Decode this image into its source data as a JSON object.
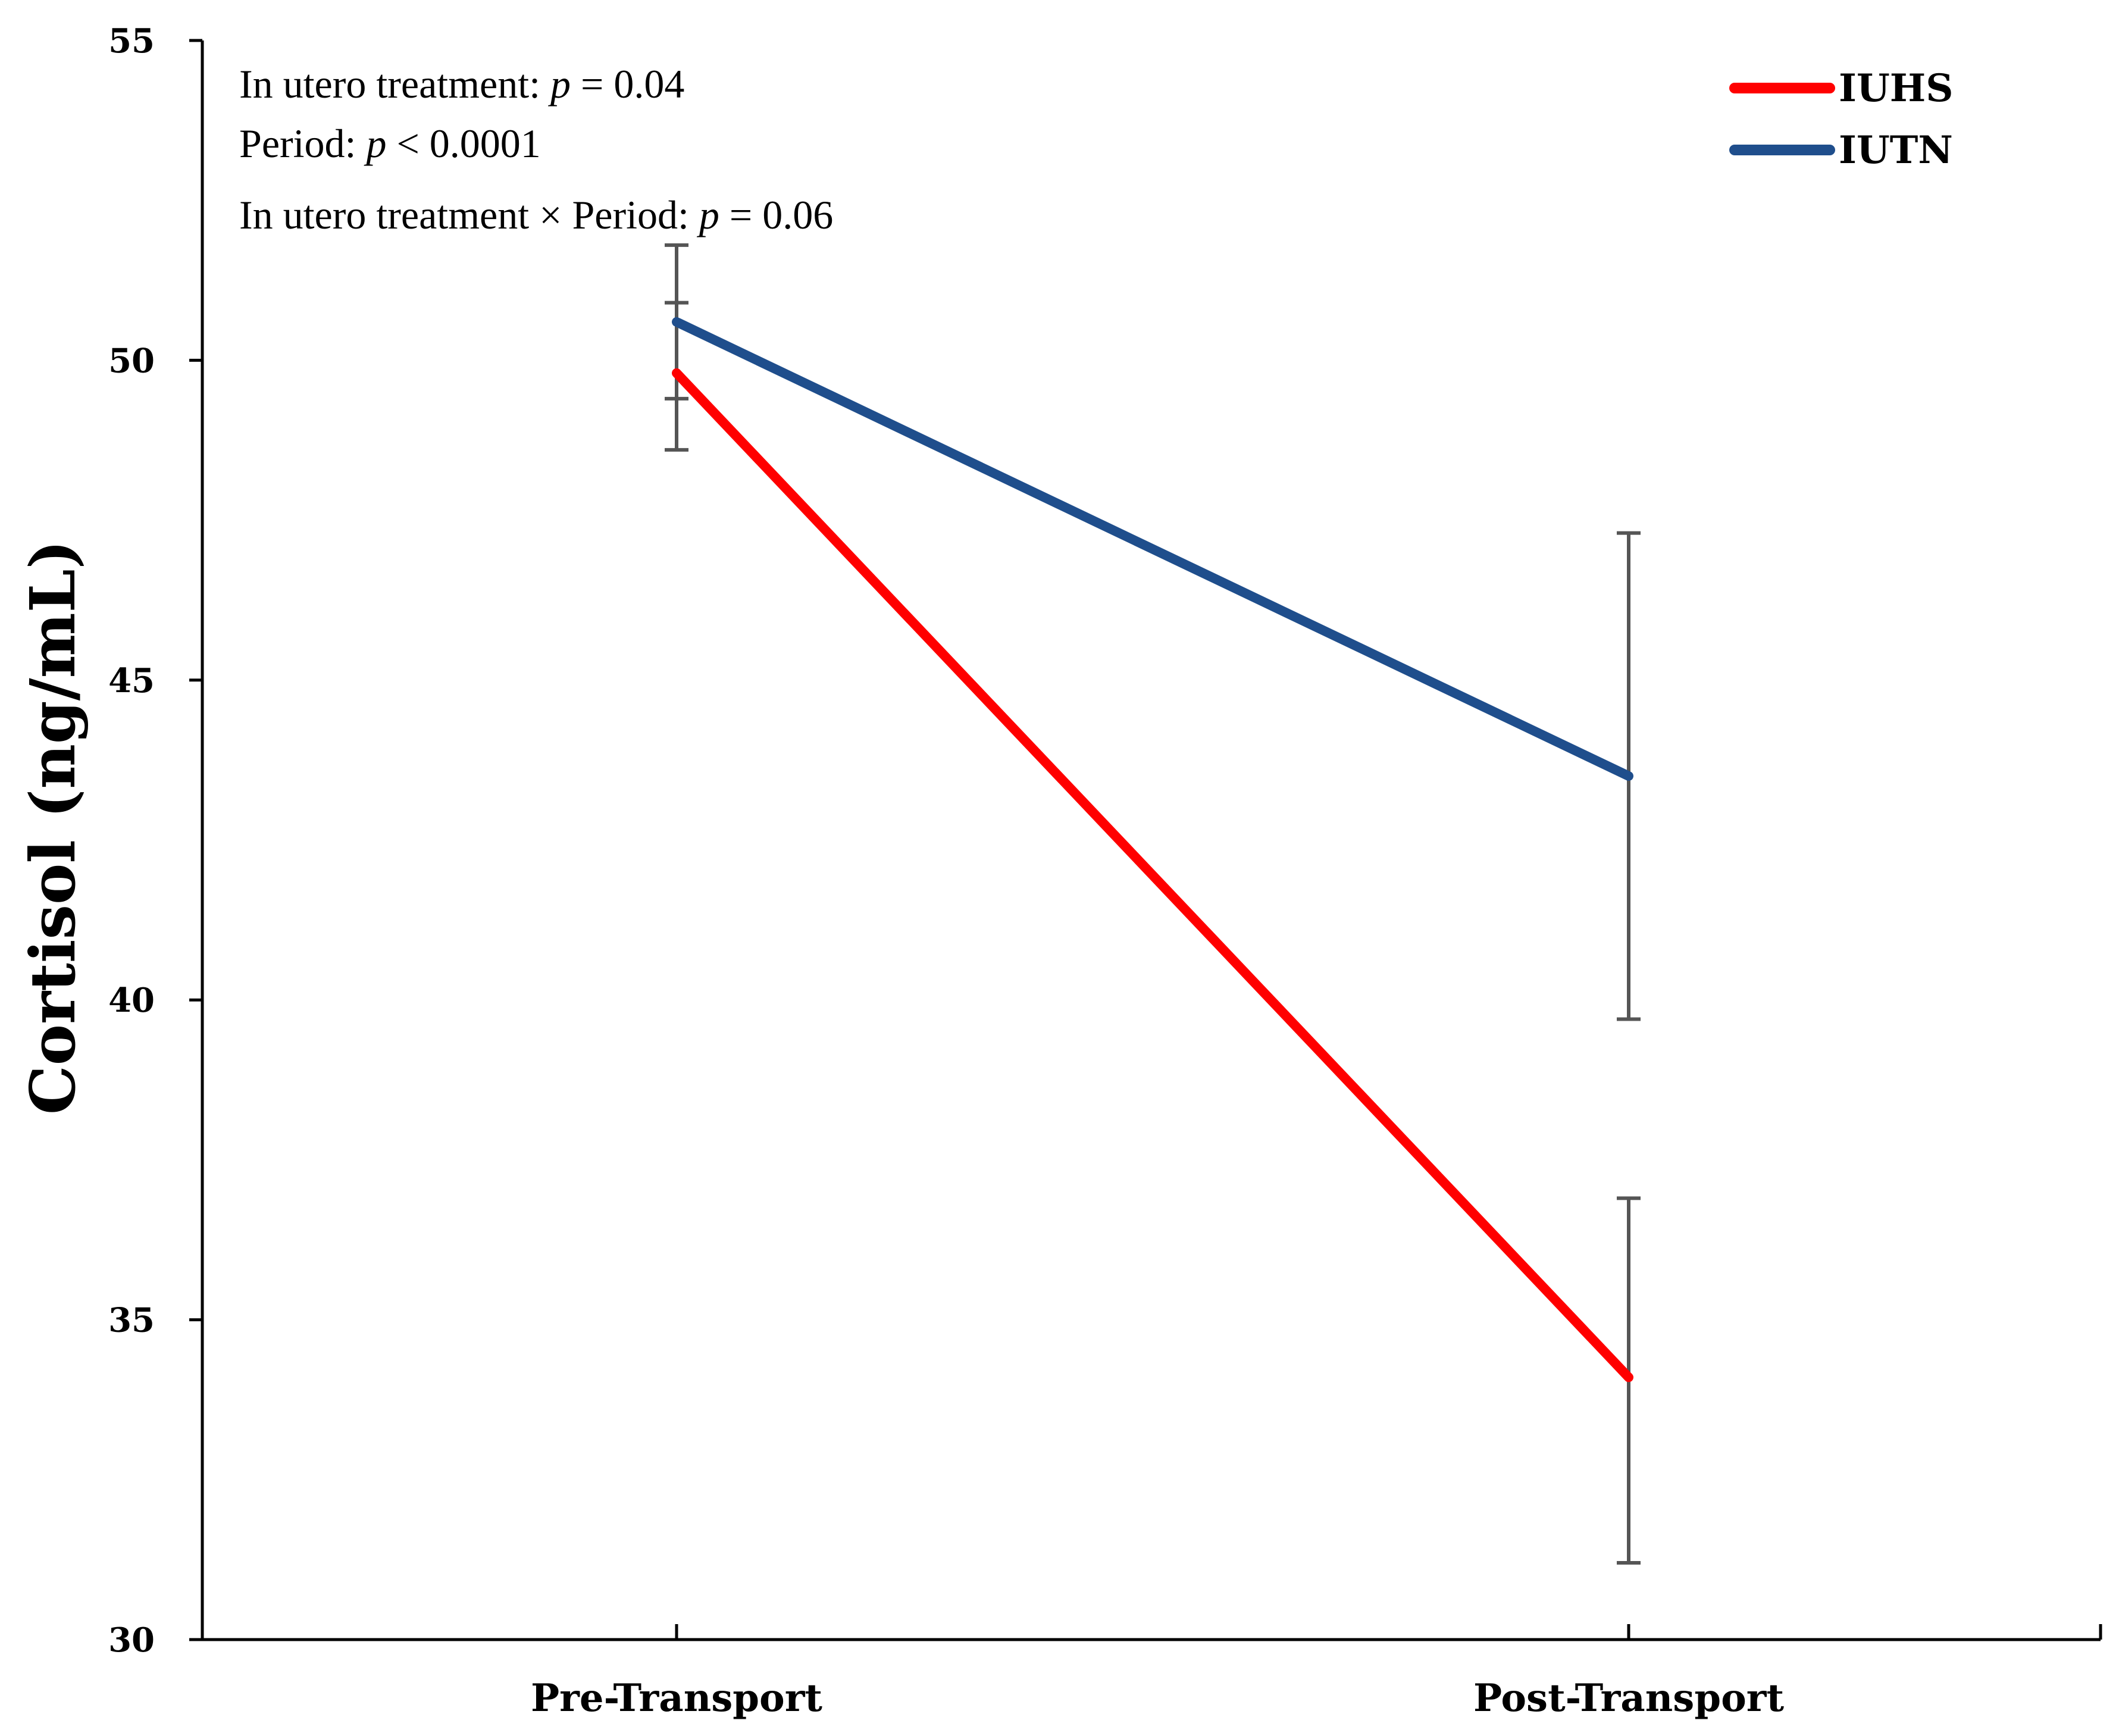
{
  "chart_data": {
    "type": "line",
    "title": "",
    "xlabel": "",
    "ylabel": "Cortisol (ng/mL)",
    "ylim": [
      30,
      55
    ],
    "yticks": [
      "30",
      "35",
      "40",
      "45",
      "50",
      "55"
    ],
    "categories": [
      "Pre-Transport",
      "Post-Transport"
    ],
    "grid": false,
    "legend_position": "top-right",
    "series": [
      {
        "name": "IUHS",
        "color": "#ff0000",
        "values": [
          49.8,
          34.1
        ],
        "error": [
          [
            48.6,
            50.9
          ],
          [
            31.2,
            36.9
          ]
        ]
      },
      {
        "name": "IUTN",
        "color": "#1f4e8c",
        "values": [
          50.6,
          43.5
        ],
        "error": [
          [
            49.4,
            51.8
          ],
          [
            39.7,
            47.3
          ]
        ]
      }
    ],
    "annotations": [
      {
        "prefix": "In utero treatment: ",
        "p_symbol": "p",
        "suffix": " = 0.04"
      },
      {
        "prefix": "Period: ",
        "p_symbol": "p",
        "suffix": " < 0.0001"
      },
      {
        "prefix": "In utero treatment × Period: ",
        "p_symbol": "p",
        "suffix": " = 0.06"
      }
    ]
  }
}
